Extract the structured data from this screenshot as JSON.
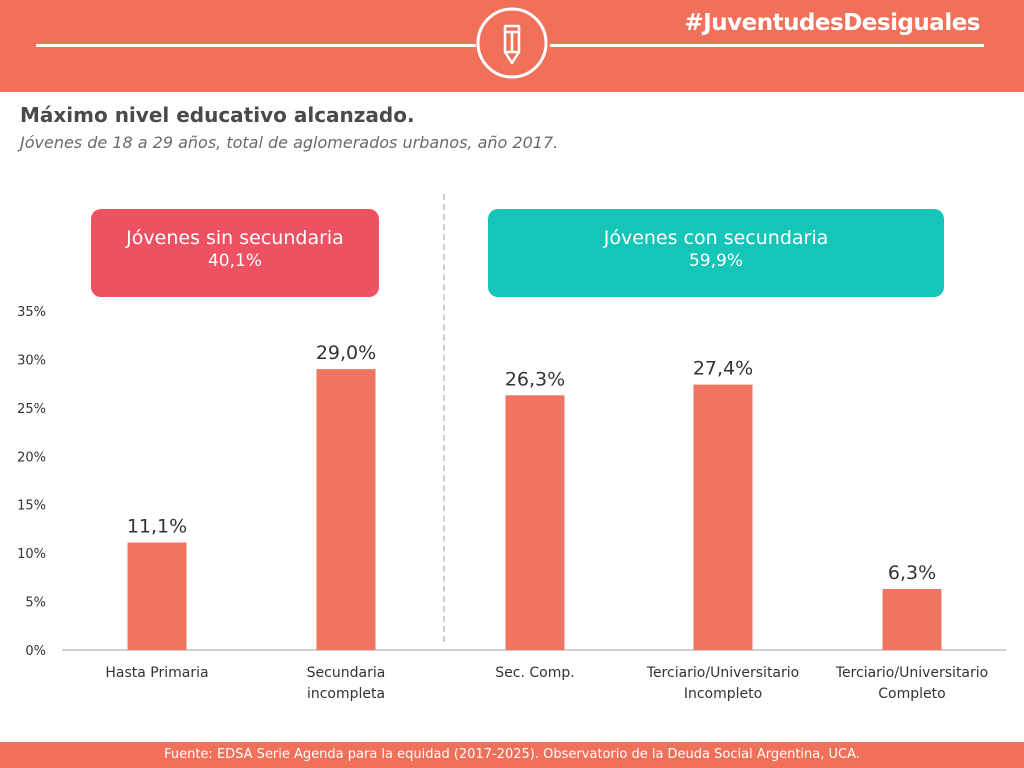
{
  "header": {
    "hashtag": "#JuventudesDesiguales",
    "icon": "pencil-icon",
    "band_color": "#f0705a"
  },
  "title": "Máximo nivel educativo alcanzado",
  "title_suffix": ".",
  "subtitle": "Jóvenes de 18 a 29 años, total de aglomerados urbanos, año 2017.",
  "groups": [
    {
      "label": "Jóvenes sin secundaria",
      "value": "40,1%",
      "color": "#ee5162"
    },
    {
      "label": "Jóvenes con secundaria",
      "value": "59,9%",
      "color": "#15c6b8"
    }
  ],
  "chart_data": {
    "type": "bar",
    "categories": [
      [
        "Hasta Primaria"
      ],
      [
        "Secundaria",
        "incompleta"
      ],
      [
        "Sec. Comp."
      ],
      [
        "Terciario/Universitario",
        "Incompleto"
      ],
      [
        "Terciario/Universitario",
        "Completo"
      ]
    ],
    "values": [
      11.1,
      29.0,
      26.3,
      27.4,
      6.3
    ],
    "value_labels": [
      "11,1%",
      "29,0%",
      "26,3%",
      "27,4%",
      "6,3%"
    ],
    "ylim": [
      0,
      35
    ],
    "yticks": [
      "0%",
      "5%",
      "10%",
      "15%",
      "20%",
      "25%",
      "30%",
      "35%"
    ],
    "ytick_values": [
      0,
      5,
      10,
      15,
      20,
      25,
      30,
      35
    ],
    "bar_color": "#ef7560",
    "grid": false
  },
  "footer": "Fuente: EDSA Serie Agenda para la equidad (2017-2025). Observatorio de la Deuda Social Argentina, UCA."
}
